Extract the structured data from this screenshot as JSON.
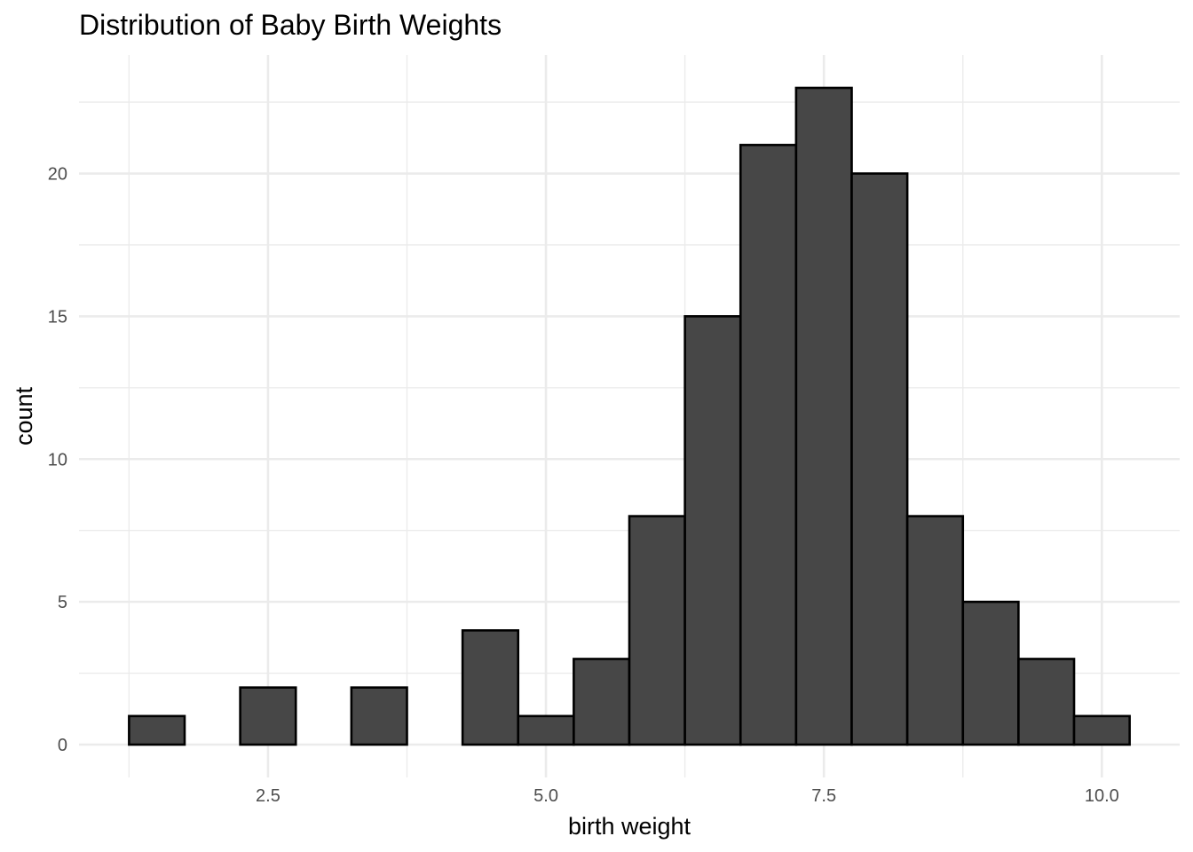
{
  "chart_data": {
    "type": "histogram",
    "title": "Distribution of Baby Birth Weights",
    "xlabel": "birth weight",
    "ylabel": "count",
    "bin_width": 0.5,
    "bins": [
      {
        "x0": 1.25,
        "x1": 1.75,
        "count": 1
      },
      {
        "x0": 1.75,
        "x1": 2.25,
        "count": 0
      },
      {
        "x0": 2.25,
        "x1": 2.75,
        "count": 2
      },
      {
        "x0": 2.75,
        "x1": 3.25,
        "count": 0
      },
      {
        "x0": 3.25,
        "x1": 3.75,
        "count": 2
      },
      {
        "x0": 3.75,
        "x1": 4.25,
        "count": 0
      },
      {
        "x0": 4.25,
        "x1": 4.75,
        "count": 4
      },
      {
        "x0": 4.75,
        "x1": 5.25,
        "count": 1
      },
      {
        "x0": 5.25,
        "x1": 5.75,
        "count": 3
      },
      {
        "x0": 5.75,
        "x1": 6.25,
        "count": 8
      },
      {
        "x0": 6.25,
        "x1": 6.75,
        "count": 15
      },
      {
        "x0": 6.75,
        "x1": 7.25,
        "count": 21
      },
      {
        "x0": 7.25,
        "x1": 7.75,
        "count": 23
      },
      {
        "x0": 7.75,
        "x1": 8.25,
        "count": 20
      },
      {
        "x0": 8.25,
        "x1": 8.75,
        "count": 8
      },
      {
        "x0": 8.75,
        "x1": 9.25,
        "count": 5
      },
      {
        "x0": 9.25,
        "x1": 9.75,
        "count": 3
      },
      {
        "x0": 9.75,
        "x1": 10.25,
        "count": 1
      }
    ],
    "xlim": [
      0.8,
      10.7
    ],
    "ylim": [
      -1.15,
      24.15
    ],
    "x_ticks": [
      2.5,
      5.0,
      7.5,
      10.0
    ],
    "x_tick_labels": [
      "2.5",
      "5.0",
      "7.5",
      "10.0"
    ],
    "x_minor_ticks": [
      1.25,
      3.75,
      6.25,
      8.75
    ],
    "y_ticks": [
      0,
      5,
      10,
      15,
      20
    ],
    "y_tick_labels": [
      "0",
      "5",
      "10",
      "15",
      "20"
    ],
    "y_minor_ticks": [
      2.5,
      7.5,
      12.5,
      17.5,
      22.5
    ],
    "grid": true,
    "legend": "none",
    "colors": {
      "bar_fill": "#474747",
      "bar_outline": "#000000",
      "grid": "#ebebeb",
      "background": "#ffffff"
    }
  }
}
